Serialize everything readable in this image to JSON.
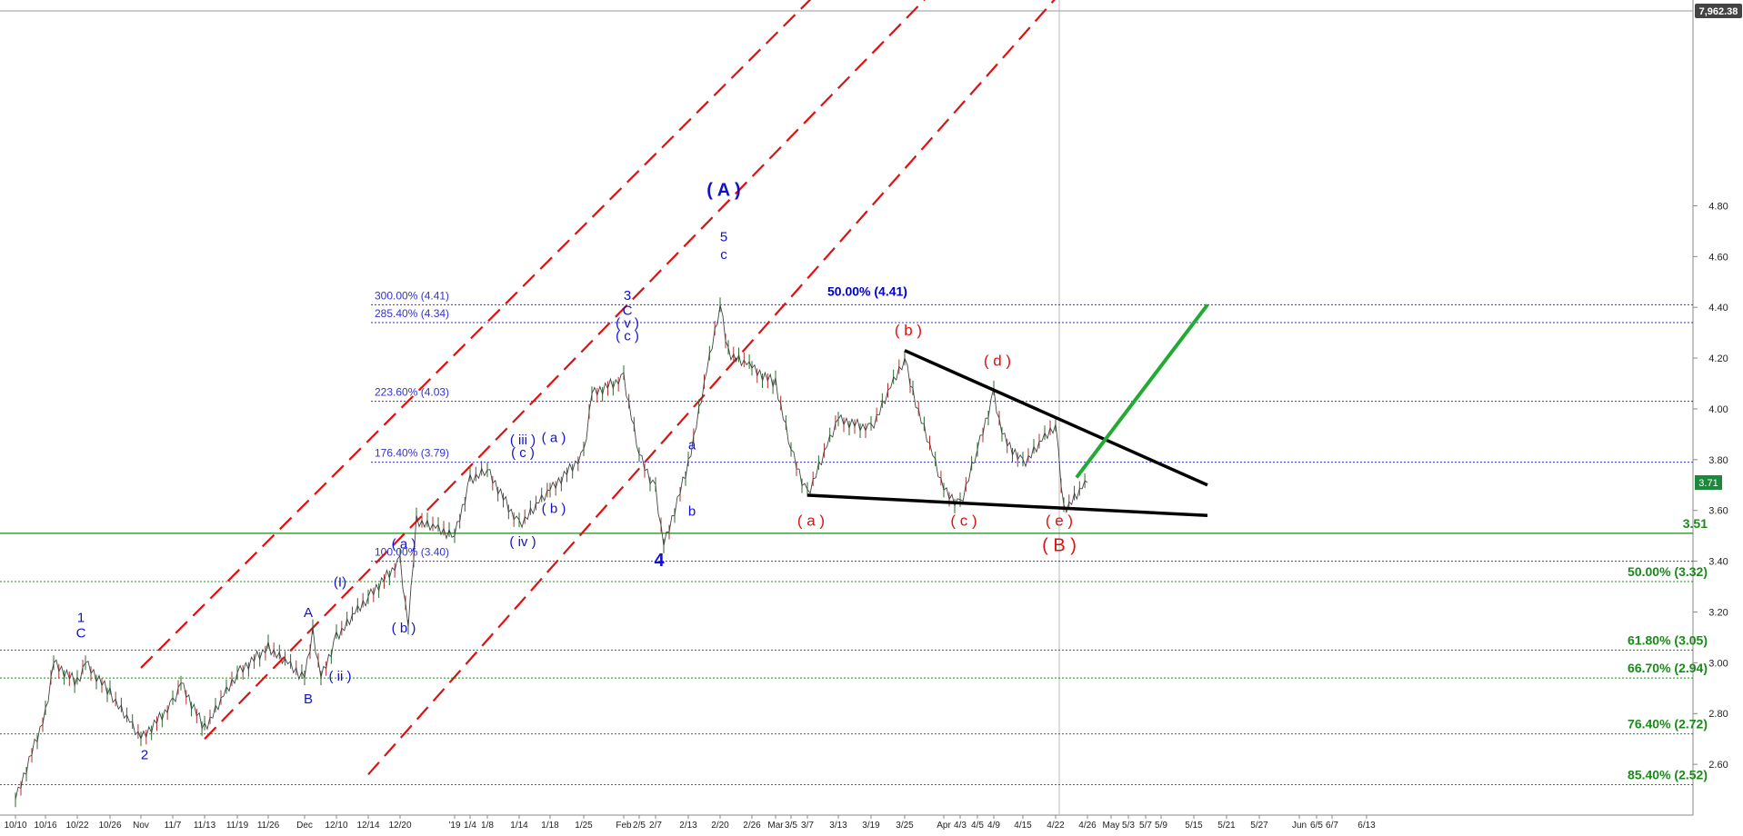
{
  "chart_data": {
    "type": "line",
    "y_axis": {
      "side": "right",
      "ticks": [
        "2.60",
        "2.80",
        "3.00",
        "3.20",
        "3.40",
        "3.60",
        "3.80",
        "4.00",
        "4.20",
        "4.40",
        "4.60",
        "4.80"
      ],
      "ylim": [
        2.4,
        5.0
      ],
      "top_label": "7,962.38"
    },
    "x_axis": {
      "ticks": [
        "10/10",
        "10/16",
        "10/22",
        "10/26",
        "Nov",
        "11/7",
        "11/13",
        "11/19",
        "11/26",
        "Dec",
        "12/10",
        "12/14",
        "12/20",
        "'19",
        "1/4",
        "1/8",
        "1/14",
        "1/18",
        "1/25",
        "Feb",
        "2/5",
        "2/7",
        "2/13",
        "2/20",
        "2/26",
        "Mar",
        "3/5",
        "3/7",
        "3/13",
        "3/19",
        "3/25",
        "Apr",
        "4/3",
        "4/5",
        "4/9",
        "4/15",
        "4/22",
        "4/26",
        "May",
        "5/3",
        "5/7",
        "5/9",
        "5/15",
        "5/21",
        "5/27",
        "Jun",
        "6/5",
        "6/7",
        "6/13"
      ]
    },
    "series": [
      {
        "values": [
          {
            "x": "10/10",
            "y": 2.46
          },
          {
            "x": "10/16",
            "y": 2.8
          },
          {
            "x": "10/16",
            "y": 3.0
          },
          {
            "x": "10/22",
            "y": 2.92
          },
          {
            "x": "10/22",
            "y": 3.0
          },
          {
            "x": "10/26",
            "y": 2.88
          },
          {
            "x": "Nov",
            "y": 2.7
          },
          {
            "x": "11/7",
            "y": 2.84
          },
          {
            "x": "11/7",
            "y": 2.92
          },
          {
            "x": "11/13",
            "y": 2.74
          },
          {
            "x": "11/19",
            "y": 2.96
          },
          {
            "x": "11/26",
            "y": 3.06
          },
          {
            "x": "Dec",
            "y": 2.94
          },
          {
            "x": "Dec",
            "y": 3.12
          },
          {
            "x": "Dec",
            "y": 2.94
          },
          {
            "x": "12/10",
            "y": 3.1
          },
          {
            "x": "12/14",
            "y": 3.26
          },
          {
            "x": "12/20",
            "y": 3.4
          },
          {
            "x": "12/20",
            "y": 3.14
          },
          {
            "x": "12/20",
            "y": 3.56
          },
          {
            "x": "'19",
            "y": 3.5
          },
          {
            "x": "1/4",
            "y": 3.72
          },
          {
            "x": "1/8",
            "y": 3.76
          },
          {
            "x": "1/14",
            "y": 3.54
          },
          {
            "x": "1/18",
            "y": 3.68
          },
          {
            "x": "1/25",
            "y": 3.82
          },
          {
            "x": "1/25",
            "y": 4.06
          },
          {
            "x": "Feb",
            "y": 4.12
          },
          {
            "x": "2/5",
            "y": 3.82
          },
          {
            "x": "2/7",
            "y": 3.68
          },
          {
            "x": "2/7",
            "y": 3.46
          },
          {
            "x": "2/13",
            "y": 3.78
          },
          {
            "x": "2/20",
            "y": 4.41
          },
          {
            "x": "2/20",
            "y": 4.22
          },
          {
            "x": "2/26",
            "y": 4.16
          },
          {
            "x": "Mar",
            "y": 4.1
          },
          {
            "x": "3/5",
            "y": 3.84
          },
          {
            "x": "3/7",
            "y": 3.66
          },
          {
            "x": "3/13",
            "y": 3.96
          },
          {
            "x": "3/19",
            "y": 3.92
          },
          {
            "x": "3/25",
            "y": 4.2
          },
          {
            "x": "3/25",
            "y": 4.06
          },
          {
            "x": "Apr",
            "y": 3.68
          },
          {
            "x": "4/3",
            "y": 3.62
          },
          {
            "x": "4/5",
            "y": 3.84
          },
          {
            "x": "4/9",
            "y": 4.06
          },
          {
            "x": "4/9",
            "y": 3.9
          },
          {
            "x": "4/15",
            "y": 3.78
          },
          {
            "x": "4/22",
            "y": 3.94
          },
          {
            "x": "4/22",
            "y": 3.6
          },
          {
            "x": "4/26",
            "y": 3.71
          }
        ]
      }
    ],
    "current_price": "3.71",
    "horizontal_levels": [
      {
        "label": "300.00% (4.41)",
        "y": 4.41,
        "color": "#3333cc",
        "side": "left"
      },
      {
        "label": "285.40% (4.34)",
        "y": 4.34,
        "color": "#3333cc",
        "side": "left"
      },
      {
        "label": "223.60% (4.03)",
        "y": 4.03,
        "color": "#3333cc",
        "side": "left"
      },
      {
        "label": "176.40% (3.79)",
        "y": 3.79,
        "color": "#3333cc",
        "side": "left"
      },
      {
        "label": "100.00% (3.40)",
        "y": 3.4,
        "color": "#3333cc",
        "side": "left"
      },
      {
        "label": "3.51",
        "y": 3.51,
        "color": "#1a8a1a",
        "side": "right"
      },
      {
        "label": "50.00% (3.32)",
        "y": 3.32,
        "color": "#1a8a1a",
        "side": "right"
      },
      {
        "label": "61.80% (3.05)",
        "y": 3.05,
        "color": "#1a8a1a",
        "side": "right"
      },
      {
        "label": "66.70% (2.94)",
        "y": 2.94,
        "color": "#1a8a1a",
        "side": "right"
      },
      {
        "label": "76.40% (2.72)",
        "y": 2.72,
        "color": "#1a8a1a",
        "side": "right"
      },
      {
        "label": "85.40% (2.52)",
        "y": 2.52,
        "color": "#1a8a1a",
        "side": "right"
      }
    ],
    "fib_top_label": "50.00% (4.41)",
    "wave_labels_blue": [
      {
        "t": "1",
        "x": "10/22",
        "y": 3.16
      },
      {
        "t": "C",
        "x": "10/22",
        "y": 3.1
      },
      {
        "t": "2",
        "x": "Nov",
        "y": 2.62
      },
      {
        "t": "A",
        "x": "Dec",
        "y": 3.18
      },
      {
        "t": "B",
        "x": "Dec",
        "y": 2.84
      },
      {
        "t": "(I)",
        "x": "12/10",
        "y": 3.3
      },
      {
        "t": "( ii )",
        "x": "12/10",
        "y": 2.93
      },
      {
        "t": "( a )",
        "x": "12/20",
        "y": 3.45
      },
      {
        "t": "( b )",
        "x": "12/20",
        "y": 3.12
      },
      {
        "t": "( iii )",
        "x": "1/14",
        "y": 3.86
      },
      {
        "t": "( c )",
        "x": "1/14",
        "y": 3.81
      },
      {
        "t": "( iv )",
        "x": "1/14",
        "y": 3.46
      },
      {
        "t": "( a )",
        "x": "1/18",
        "y": 3.87
      },
      {
        "t": "( b )",
        "x": "1/18",
        "y": 3.59
      },
      {
        "t": "3",
        "x": "Feb",
        "y": 4.43
      },
      {
        "t": "C",
        "x": "Feb",
        "y": 4.37
      },
      {
        "t": "( v )",
        "x": "Feb",
        "y": 4.32
      },
      {
        "t": "( c )",
        "x": "Feb",
        "y": 4.27
      },
      {
        "t": "a",
        "x": "2/13",
        "y": 3.84
      },
      {
        "t": "b",
        "x": "2/13",
        "y": 3.58
      },
      {
        "t": "4",
        "x": "2/7",
        "y": 3.38
      },
      {
        "t": "( A )",
        "x": "2/20",
        "y": 4.84
      },
      {
        "t": "5",
        "x": "2/20",
        "y": 4.66
      },
      {
        "t": "c",
        "x": "2/20",
        "y": 4.59
      }
    ],
    "wave_labels_red": [
      {
        "t": "( a )",
        "x": "3/7",
        "y": 3.54
      },
      {
        "t": "( b )",
        "x": "3/25",
        "y": 4.29
      },
      {
        "t": "( c )",
        "x": "4/3",
        "y": 3.54
      },
      {
        "t": "( d )",
        "x": "4/9",
        "y": 4.17
      },
      {
        "t": "( e )",
        "x": "4/22",
        "y": 3.54
      },
      {
        "t": "( B )",
        "x": "4/22",
        "y": 3.44
      }
    ],
    "channel_lines": [
      {
        "style": "dashed",
        "color": "#dd1111",
        "from": {
          "x": "Nov",
          "y": 2.98
        },
        "to": {
          "x": "6/13",
          "y": 7.8
        }
      },
      {
        "style": "dashed",
        "color": "#dd1111",
        "from": {
          "x": "11/13",
          "y": 2.7
        },
        "to": {
          "x": "6/13",
          "y": 7.4
        }
      },
      {
        "style": "dashed",
        "color": "#dd1111",
        "from": {
          "x": "12/14",
          "y": 2.56
        },
        "to": {
          "x": "6/13",
          "y": 7.0
        }
      }
    ],
    "triangle_lines": [
      {
        "color": "#000000",
        "from": {
          "x": "3/25",
          "y": 4.23
        },
        "to": {
          "x": "5/15",
          "y": 3.7
        }
      },
      {
        "color": "#000000",
        "from": {
          "x": "3/7",
          "y": 3.66
        },
        "to": {
          "x": "5/15",
          "y": 3.58
        }
      }
    ],
    "projection_line": {
      "color": "#22aa33",
      "from": {
        "x": "4/26",
        "y": 3.73
      },
      "to": {
        "x": "5/15",
        "y": 4.41
      }
    },
    "grid": false,
    "legend": "none"
  }
}
